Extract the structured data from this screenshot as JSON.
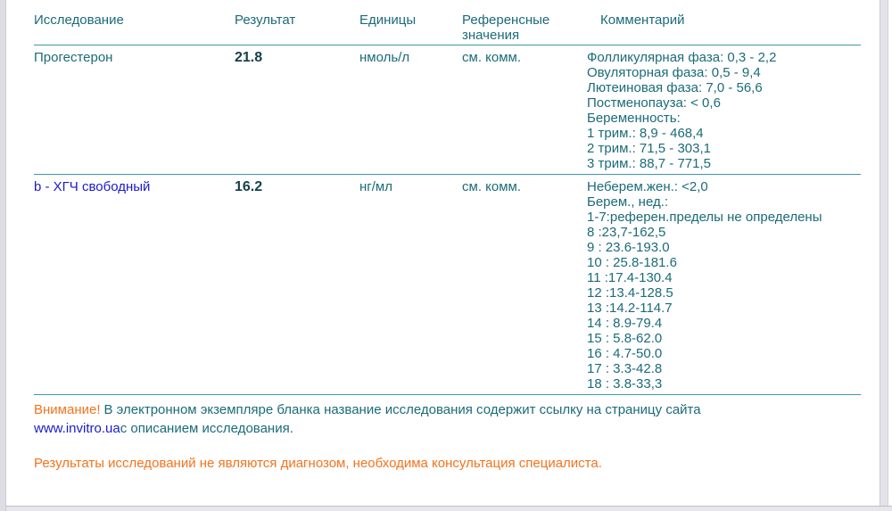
{
  "table": {
    "headers": [
      "Исследование",
      "Результат",
      "Единицы",
      "Референсные значения",
      "Комментарий"
    ],
    "rows": [
      {
        "name": "Прогестерон",
        "result": "21.8",
        "units": "нмоль/л",
        "reference": "см. комм.",
        "comment_lines": [
          "Фолликулярная фаза: 0,3 - 2,2",
          "Овуляторная фаза: 0,5 - 9,4",
          "Лютеиновая фаза: 7,0 - 56,6",
          "Постменопауза: < 0,6",
          "Беременность:",
          "1 трим.: 8,9 - 468,4",
          "2 трим.: 71,5 - 303,1",
          "3 трим.: 88,7 - 771,5"
        ]
      },
      {
        "name": "b - ХГЧ свободный",
        "result": "16.2",
        "units": "нг/мл",
        "reference": "см. комм.",
        "comment_lines": [
          "Неберем.жен.: <2,0",
          "Берем., нед.:",
          "1-7:референ.пределы не определены",
          "8 :23,7-162,5",
          "9 : 23.6-193.0",
          "10 : 25.8-181.6",
          "11 :17.4-130.4",
          "12 :13.4-128.5",
          "13 :14.2-114.7",
          "14 : 8.9-79.4",
          "15 : 5.8-62.0",
          "16 : 4.7-50.0",
          "17 : 3.3-42.8",
          "18 : 3.8-33,3"
        ]
      }
    ]
  },
  "notices": {
    "attention_label": "Внимание!",
    "attention_text": "В электронном экземпляре бланка название исследования содержит ссылку на страницу сайта",
    "site_link": "www.invitro.ua",
    "site_link_suffix": "с описанием исследования.",
    "disclaimer": "Результаты исследований не являются диагнозом, необходима консультация специалиста."
  },
  "colors": {
    "text_teal": "#1b6b78",
    "result_dark": "#153f4a",
    "link_blue": "#1a1acd",
    "warning_orange": "#f4731c",
    "line_teal": "#3e98a8"
  }
}
